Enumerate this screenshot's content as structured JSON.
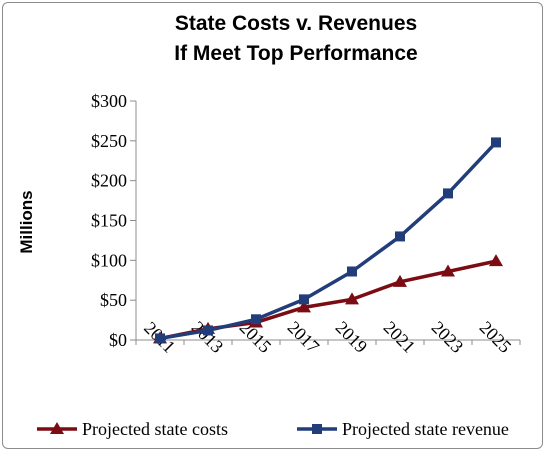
{
  "chart_data": {
    "type": "line",
    "title_lines": [
      "State Costs v. Revenues",
      "If Meet Top Performance"
    ],
    "ylabel": "Millions",
    "xlabel": "",
    "x": [
      "2011",
      "2013",
      "2015",
      "2017",
      "2019",
      "2021",
      "2023",
      "2025"
    ],
    "ylim": [
      0,
      300
    ],
    "y_ticks": [
      0,
      50,
      100,
      150,
      200,
      250,
      300
    ],
    "y_tick_labels": [
      "$0",
      "$50",
      "$100",
      "$150",
      "$200",
      "$250",
      "$300"
    ],
    "grid": false,
    "legend_position": "bottom",
    "series": [
      {
        "name": "Projected state costs",
        "marker": "triangle",
        "color": "#7b0c14",
        "values": [
          2,
          14,
          22,
          41,
          51,
          73,
          86,
          99
        ]
      },
      {
        "name": "Projected state revenue",
        "marker": "square",
        "color": "#213d7a",
        "values": [
          2,
          12,
          26,
          51,
          86,
          130,
          184,
          248
        ]
      }
    ]
  }
}
